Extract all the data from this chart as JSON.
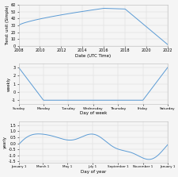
{
  "top_xlabel": "Date (UTC Time)",
  "top_ylabel": "Trend: unit (Simple)",
  "mid_xlabel": "Day of week",
  "mid_ylabel": "weekly",
  "bot_xlabel": "Day of year",
  "bot_ylabel": "yearly",
  "line_color": "#5b9bd5",
  "bg_color": "#f5f5f5",
  "grid_color": "#d8d8d8",
  "font_size": 4.0,
  "tick_font_size": 3.5
}
